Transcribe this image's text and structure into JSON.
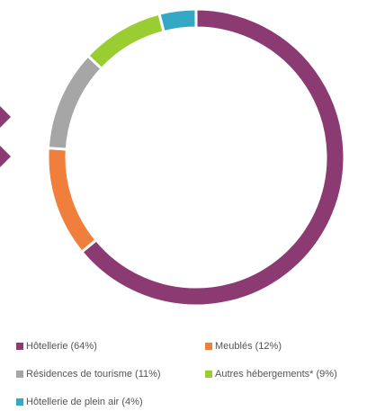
{
  "chart_data": {
    "type": "donut",
    "categories": [
      "Hôtellerie (64%)",
      "Meublés (12%)",
      "Résidences de tourisme (11%)",
      "Autres hébergements* (9%)",
      "Hôtellerie de plein air (4%)"
    ],
    "values": [
      64,
      12,
      11,
      9,
      4
    ],
    "colors": [
      "#8b3a72",
      "#f07f3c",
      "#a6a6a6",
      "#9acd32",
      "#35a8c6"
    ],
    "legend": "bottom"
  }
}
